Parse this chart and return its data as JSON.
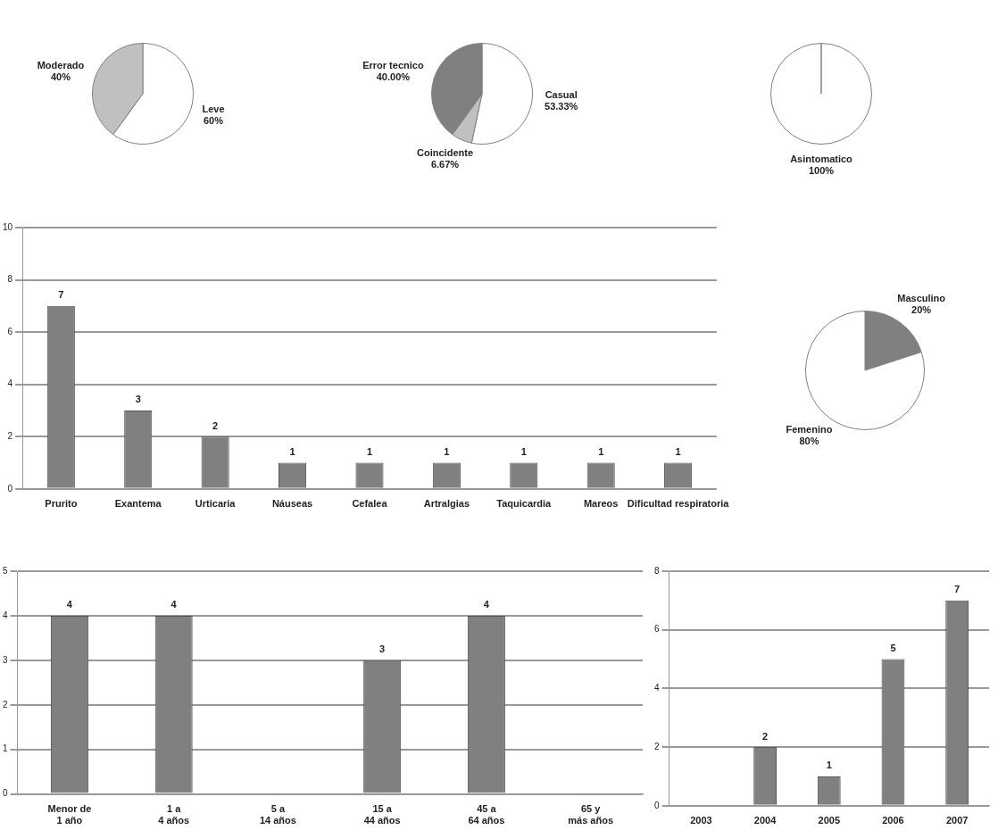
{
  "chart_data": [
    {
      "type": "pie",
      "categories": [
        "Leve",
        "Moderado"
      ],
      "values": [
        60,
        40
      ],
      "colors": [
        "#ffffff",
        "#c0c0c0"
      ],
      "value_labels": [
        "60%",
        "40%"
      ]
    },
    {
      "type": "pie",
      "categories": [
        "Casual",
        "Coincidente",
        "Error tecnico"
      ],
      "values": [
        53.33,
        6.67,
        40.0
      ],
      "colors": [
        "#ffffff",
        "#c0c0c0",
        "#808080"
      ],
      "value_labels": [
        "53.33%",
        "6.67%",
        "40.00%"
      ]
    },
    {
      "type": "pie",
      "categories": [
        "Asintomatico"
      ],
      "values": [
        100
      ],
      "colors": [
        "#ffffff"
      ],
      "value_labels": [
        "100%"
      ]
    },
    {
      "type": "bar",
      "categories": [
        "Prurito",
        "Exantema",
        "Urticaria",
        "Náuseas",
        "Cefalea",
        "Artralgias",
        "Taquicardia",
        "Mareos",
        "Dificultad respiratoria"
      ],
      "values": [
        7,
        3,
        2,
        1,
        1,
        1,
        1,
        1,
        1
      ],
      "color": "#808080",
      "ylim": [
        0,
        10
      ],
      "yticks": [
        0,
        2,
        4,
        6,
        8,
        10
      ],
      "grid": "y",
      "data_labels": true
    },
    {
      "type": "pie",
      "categories": [
        "Masculino",
        "Femenino"
      ],
      "values": [
        20,
        80
      ],
      "colors": [
        "#808080",
        "#ffffff"
      ],
      "value_labels": [
        "20%",
        "80%"
      ]
    },
    {
      "type": "bar",
      "categories": [
        "Menor de 1 año",
        "1 a 4 años",
        "5 a 14 años",
        "15 a 44 años",
        "45 a 64 años",
        "65 y más años"
      ],
      "values": [
        4,
        4,
        0,
        3,
        4,
        0
      ],
      "value_labels": [
        "4",
        "4",
        null,
        "3",
        "4",
        null
      ],
      "color": "#808080",
      "ylim": [
        0,
        5
      ],
      "yticks": [
        0,
        1,
        2,
        3,
        4,
        5
      ],
      "grid": "y"
    },
    {
      "type": "bar",
      "categories": [
        "2003",
        "2004",
        "2005",
        "2006",
        "2007"
      ],
      "values": [
        0,
        2,
        1,
        5,
        7
      ],
      "value_labels": [
        null,
        "2",
        "1",
        "5",
        "7"
      ],
      "color": "#808080",
      "ylim": [
        0,
        8
      ],
      "yticks": [
        0,
        2,
        4,
        6,
        8
      ],
      "grid": "y"
    }
  ]
}
